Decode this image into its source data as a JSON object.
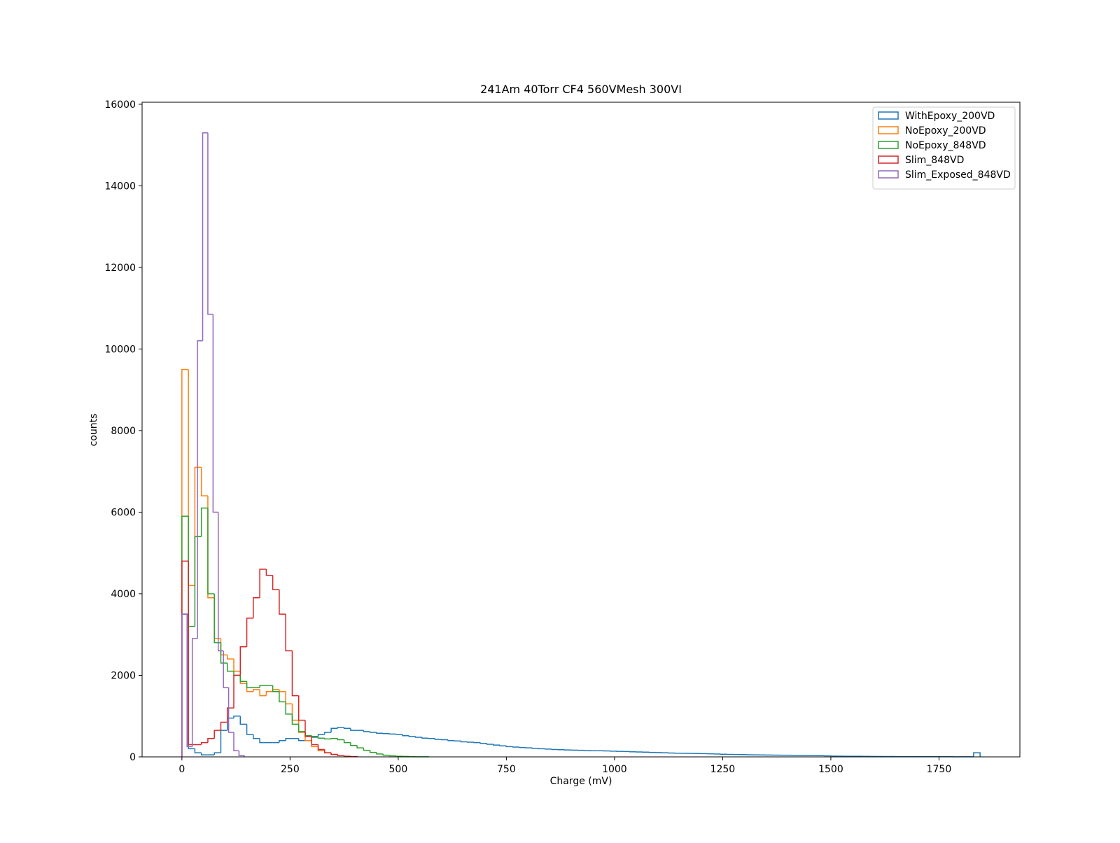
{
  "chart_data": {
    "type": "histogram",
    "title": "241Am 40Torr CF4 560VMesh 300VI",
    "x_label": "Charge (mV)",
    "y_label": "counts",
    "xlim": [
      -92,
      1937
    ],
    "ylim": [
      0,
      16050
    ],
    "xticks": [
      0,
      250,
      500,
      750,
      1000,
      1250,
      1500,
      1750
    ],
    "yticks": [
      0,
      2000,
      4000,
      6000,
      8000,
      10000,
      12000,
      14000,
      16000
    ],
    "legend": "upper right",
    "series": [
      {
        "name": "WithEpoxy_200VD",
        "color": "#1f77b4",
        "bins": [
          0,
          15,
          30,
          45,
          60,
          75,
          90,
          105,
          120,
          135,
          150,
          165,
          180,
          195,
          210,
          225,
          240,
          255,
          270,
          285,
          300,
          315,
          330,
          345,
          360,
          375,
          390,
          405,
          420,
          435,
          450,
          465,
          480,
          495,
          510,
          525,
          540,
          555,
          570,
          585,
          600,
          615,
          630,
          645,
          660,
          675,
          690,
          705,
          720,
          735,
          750,
          765,
          780,
          795,
          810,
          825,
          840,
          855,
          870,
          885,
          900,
          915,
          930,
          945,
          960,
          975,
          990,
          1005,
          1020,
          1035,
          1050,
          1065,
          1080,
          1095,
          1110,
          1125,
          1140,
          1155,
          1170,
          1185,
          1200,
          1215,
          1230,
          1245,
          1260,
          1275,
          1290,
          1305,
          1320,
          1335,
          1350,
          1365,
          1380,
          1395,
          1410,
          1425,
          1440,
          1455,
          1470,
          1485,
          1500,
          1515,
          1530,
          1545,
          1560,
          1575,
          1590,
          1605,
          1620,
          1635,
          1650,
          1665,
          1680,
          1695,
          1710,
          1725,
          1740,
          1755,
          1770,
          1785,
          1800,
          1815,
          1830,
          1845
        ],
        "values": [
          3500,
          200,
          100,
          50,
          50,
          100,
          650,
          950,
          1000,
          800,
          550,
          450,
          350,
          350,
          350,
          400,
          450,
          450,
          400,
          400,
          500,
          550,
          600,
          700,
          720,
          700,
          650,
          650,
          620,
          600,
          580,
          570,
          560,
          550,
          520,
          500,
          480,
          460,
          450,
          430,
          420,
          400,
          390,
          370,
          360,
          350,
          330,
          310,
          290,
          270,
          250,
          240,
          230,
          220,
          210,
          200,
          190,
          180,
          175,
          170,
          165,
          160,
          155,
          150,
          150,
          145,
          140,
          135,
          130,
          125,
          120,
          115,
          110,
          105,
          100,
          95,
          90,
          88,
          85,
          82,
          80,
          75,
          70,
          65,
          60,
          58,
          55,
          52,
          50,
          48,
          45,
          42,
          40,
          40,
          38,
          36,
          34,
          32,
          30,
          25,
          20,
          18,
          16,
          15,
          14,
          12,
          10,
          10,
          9,
          8,
          7,
          6,
          6,
          5,
          5,
          5,
          5,
          4,
          4,
          3,
          3,
          3,
          100
        ]
      },
      {
        "name": "NoEpoxy_200VD",
        "color": "#ff7f0e",
        "bins": [
          0,
          15,
          30,
          45,
          60,
          75,
          90,
          105,
          120,
          135,
          150,
          165,
          180,
          195,
          210,
          225,
          240,
          255,
          270,
          285,
          300,
          315,
          330,
          345,
          360,
          375,
          390
        ],
        "values": [
          9500,
          4200,
          7100,
          6400,
          3900,
          2900,
          2500,
          2400,
          2100,
          1800,
          1600,
          1650,
          1500,
          1600,
          1650,
          1600,
          1300,
          900,
          600,
          400,
          250,
          150,
          100,
          60,
          30,
          15
        ]
      },
      {
        "name": "NoEpoxy_848VD",
        "color": "#2ca02c",
        "bins": [
          0,
          15,
          30,
          45,
          60,
          75,
          90,
          105,
          120,
          135,
          150,
          165,
          180,
          195,
          210,
          225,
          240,
          255,
          270,
          285,
          300,
          315,
          330,
          345,
          360,
          375,
          390,
          405,
          420,
          435,
          450,
          465,
          480,
          495,
          510,
          525,
          540,
          555,
          570
        ],
        "values": [
          5900,
          3200,
          5400,
          6100,
          4000,
          2800,
          2300,
          2100,
          2000,
          1850,
          1700,
          1700,
          1750,
          1750,
          1600,
          1350,
          1050,
          800,
          620,
          520,
          480,
          460,
          440,
          450,
          420,
          350,
          280,
          220,
          160,
          110,
          70,
          40,
          25,
          15,
          10,
          5,
          3,
          2
        ]
      },
      {
        "name": "Slim_848VD",
        "color": "#d62728",
        "bins": [
          0,
          15,
          30,
          45,
          60,
          75,
          90,
          105,
          120,
          135,
          150,
          165,
          180,
          195,
          210,
          225,
          240,
          255,
          270,
          285,
          300,
          315,
          330,
          345,
          360,
          375,
          390,
          405
        ],
        "values": [
          4800,
          300,
          300,
          350,
          450,
          650,
          850,
          1200,
          2000,
          2700,
          3400,
          3900,
          4600,
          4450,
          4100,
          3500,
          2600,
          1500,
          900,
          500,
          300,
          180,
          100,
          60,
          30,
          15,
          5
        ]
      },
      {
        "name": "Slim_Exposed_848VD",
        "color": "#9467bd",
        "bins": [
          0,
          12,
          24,
          36,
          48,
          60,
          72,
          84,
          96,
          108,
          120,
          132,
          144
        ],
        "values": [
          3500,
          250,
          2900,
          10200,
          15300,
          10850,
          6000,
          2600,
          1700,
          600,
          150,
          30
        ]
      }
    ]
  }
}
